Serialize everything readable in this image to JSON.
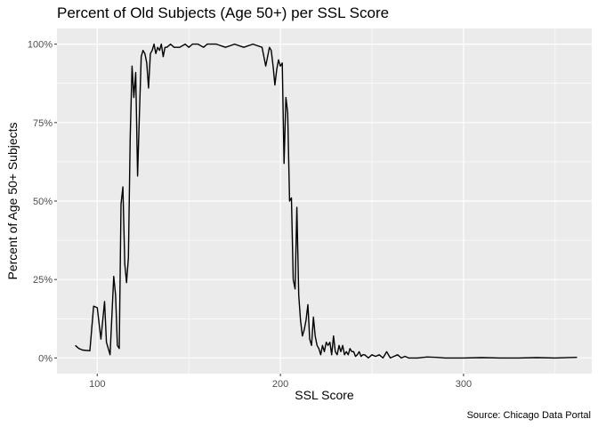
{
  "chart_data": {
    "type": "line",
    "title": "Percent of Old Subjects (Age 50+)  per SSL Score",
    "xlabel": "SSL Score",
    "ylabel": "Percent of Age 50+ Subjects",
    "caption": "Source: Chicago Data Portal",
    "xlim": [
      78,
      370
    ],
    "ylim": [
      -0.05,
      1.05
    ],
    "x_ticks": [
      100,
      200,
      300
    ],
    "x_tick_labels": [
      "100",
      "200",
      "300"
    ],
    "y_ticks": [
      0,
      0.25,
      0.5,
      0.75,
      1.0
    ],
    "y_tick_labels": [
      "0%",
      "25%",
      "50%",
      "75%",
      "100%"
    ],
    "grid": true,
    "colors": {
      "panel": "#ebebeb",
      "grid": "#ffffff",
      "line": "#000000"
    },
    "series": [
      {
        "x": [
          88,
          90,
          92,
          96,
          98,
          100,
          102,
          104,
          105,
          107,
          109,
          110,
          111,
          112,
          113,
          114,
          115,
          116,
          117,
          118,
          119,
          120,
          121,
          122,
          123,
          124,
          125,
          126,
          127,
          128,
          129,
          130,
          131,
          132,
          133,
          134,
          135,
          136,
          137,
          138,
          140,
          142,
          145,
          148,
          150,
          152,
          155,
          158,
          160,
          165,
          170,
          175,
          180,
          185,
          190,
          192,
          194,
          195,
          196,
          197,
          198,
          199,
          200,
          201,
          202,
          203,
          204,
          205,
          206,
          207,
          208,
          209,
          210,
          211,
          212,
          213,
          214,
          215,
          216,
          217,
          218,
          219,
          220,
          221,
          222,
          223,
          224,
          225,
          226,
          227,
          228,
          229,
          230,
          231,
          232,
          233,
          234,
          235,
          236,
          237,
          238,
          239,
          240,
          241,
          242,
          243,
          244,
          245,
          246,
          248,
          250,
          252,
          254,
          256,
          258,
          260,
          262,
          264,
          266,
          268,
          270,
          275,
          280,
          285,
          290,
          300,
          310,
          320,
          330,
          340,
          350,
          362
        ],
        "y": [
          0.04,
          0.03,
          0.025,
          0.023,
          0.165,
          0.16,
          0.06,
          0.18,
          0.05,
          0.01,
          0.26,
          0.2,
          0.04,
          0.03,
          0.49,
          0.545,
          0.3,
          0.24,
          0.32,
          0.7,
          0.93,
          0.83,
          0.91,
          0.58,
          0.77,
          0.96,
          0.98,
          0.97,
          0.94,
          0.86,
          0.97,
          0.98,
          1.0,
          0.97,
          0.99,
          0.98,
          1.0,
          0.96,
          0.99,
          0.99,
          1.0,
          0.99,
          0.99,
          1.0,
          0.99,
          1.0,
          1.0,
          0.99,
          1.0,
          1.0,
          0.99,
          1.0,
          0.99,
          1.0,
          0.99,
          0.93,
          0.99,
          0.98,
          0.93,
          0.87,
          0.92,
          0.95,
          0.93,
          0.94,
          0.62,
          0.83,
          0.78,
          0.5,
          0.51,
          0.25,
          0.22,
          0.48,
          0.2,
          0.12,
          0.07,
          0.09,
          0.12,
          0.17,
          0.06,
          0.04,
          0.13,
          0.07,
          0.04,
          0.03,
          0.01,
          0.04,
          0.02,
          0.05,
          0.04,
          0.05,
          0.01,
          0.07,
          0.02,
          0.01,
          0.04,
          0.02,
          0.04,
          0.01,
          0.02,
          0.01,
          0.03,
          0.02,
          0.02,
          0.005,
          0.01,
          0.02,
          0.005,
          0.01,
          0.01,
          0.0,
          0.01,
          0.005,
          0.01,
          0.0,
          0.02,
          0.0,
          0.005,
          0.01,
          0.0,
          0.005,
          0.0,
          0.0,
          0.003,
          0.002,
          0.0,
          0.0,
          0.001,
          0.0,
          0.0,
          0.001,
          0.0,
          0.002
        ]
      }
    ]
  }
}
